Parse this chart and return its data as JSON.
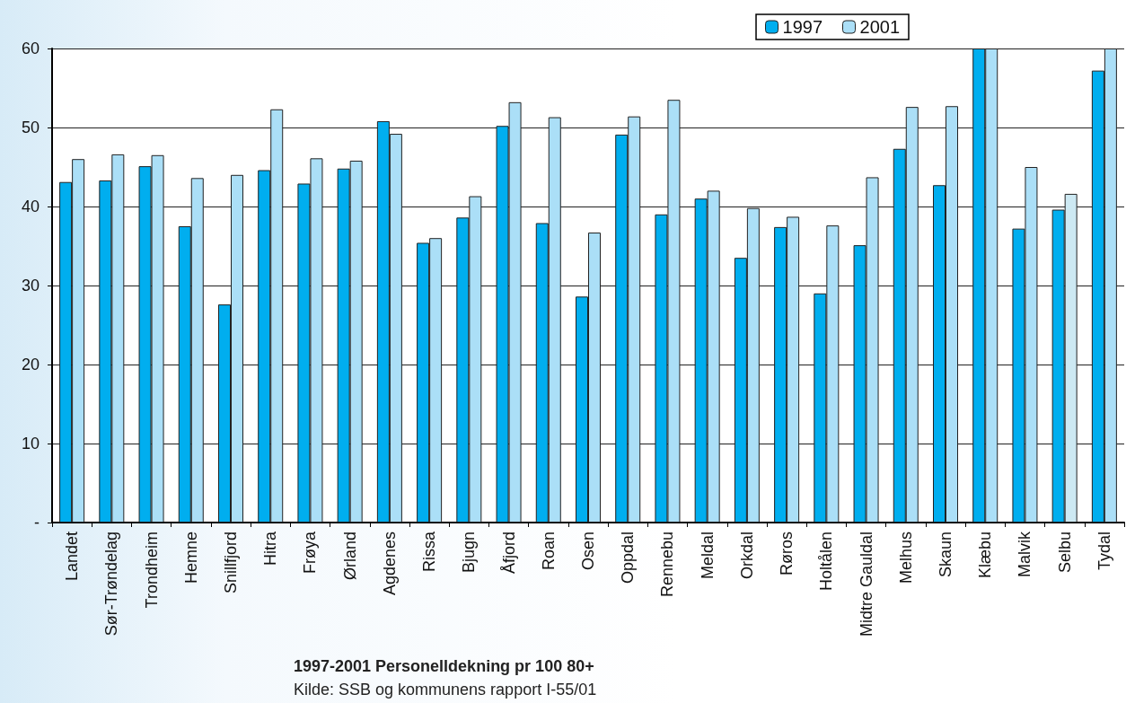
{
  "chart_data": {
    "type": "bar",
    "title": "1997-2001 Personelldekning pr 100 80+",
    "annotations": [
      "Kilde: SSB og kommunens rapport I-55/01"
    ],
    "categories": [
      "Landet",
      "Sør-Trøndelag",
      "Trondheim",
      "Hemne",
      "Snillfjord",
      "Hitra",
      "Frøya",
      "Ørland",
      "Agdenes",
      "Rissa",
      "Bjugn",
      "Åfjord",
      "Roan",
      "Osen",
      "Oppdal",
      "Rennebu",
      "Meldal",
      "Orkdal",
      "Røros",
      "Holtålen",
      "Midtre Gauldal",
      "Melhus",
      "Skaun",
      "Klæbu",
      "Malvik",
      "Selbu",
      "Tydal"
    ],
    "series": [
      {
        "name": "1997",
        "color": "#00aeef",
        "values": [
          43.1,
          43.3,
          45.1,
          37.5,
          27.6,
          44.6,
          42.9,
          44.8,
          50.8,
          35.4,
          38.6,
          50.2,
          37.9,
          28.6,
          49.1,
          39.0,
          41.0,
          33.5,
          37.4,
          29.0,
          35.1,
          47.3,
          42.7,
          60,
          37.2,
          39.6,
          57.2
        ]
      },
      {
        "name": "2001",
        "color": "#abdff7",
        "colors": [
          "#abdff7",
          "#abdff7",
          "#abdff7",
          "#abdff7",
          "#abdff7",
          "#abdff7",
          "#abdff7",
          "#abdff7",
          "#abdff7",
          "#abdff7",
          "#abdff7",
          "#abdff7",
          "#abdff7",
          "#abdff7",
          "#abdff7",
          "#abdff7",
          "#abdff7",
          "#abdff7",
          "#abdff7",
          "#abdff7",
          "#abdff7",
          "#abdff7",
          "#abdff7",
          "#abdff7",
          "#abdff7",
          "#cde9f3",
          "#abdff7"
        ],
        "values": [
          46.0,
          46.6,
          46.5,
          43.6,
          44.0,
          52.3,
          46.1,
          45.8,
          49.2,
          36.0,
          41.3,
          53.2,
          51.3,
          36.7,
          51.4,
          53.5,
          42.0,
          39.8,
          38.7,
          37.6,
          43.7,
          52.6,
          52.7,
          60,
          45.0,
          41.6,
          60
        ]
      }
    ],
    "ylim": [
      0,
      60
    ],
    "yticks": [
      {
        "value": 0,
        "label": "-"
      },
      10,
      20,
      30,
      40,
      50,
      60
    ],
    "grid": "y",
    "legend": "top right"
  }
}
